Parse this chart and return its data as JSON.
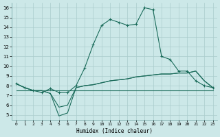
{
  "x": [
    0,
    1,
    2,
    3,
    4,
    5,
    6,
    7,
    8,
    9,
    10,
    11,
    12,
    13,
    14,
    15,
    16,
    17,
    18,
    19,
    20,
    21,
    22,
    23
  ],
  "line1_main": [
    8.2,
    7.8,
    7.5,
    7.3,
    7.7,
    7.3,
    7.3,
    8.0,
    9.8,
    12.2,
    14.2,
    14.8,
    14.5,
    14.2,
    14.3,
    16.0,
    15.8,
    11.0,
    10.7,
    9.5,
    9.5,
    8.5,
    8.0,
    7.8
  ],
  "line2_smooth": [
    8.2,
    7.8,
    7.5,
    7.5,
    7.2,
    4.9,
    5.2,
    7.8,
    8.0,
    8.1,
    8.3,
    8.5,
    8.6,
    8.7,
    8.9,
    9.0,
    9.1,
    9.2,
    9.2,
    9.3,
    9.3,
    9.5,
    8.5,
    7.8
  ],
  "line3_smooth": [
    8.2,
    7.8,
    7.5,
    7.5,
    7.2,
    5.8,
    6.0,
    7.8,
    8.0,
    8.1,
    8.3,
    8.5,
    8.6,
    8.7,
    8.9,
    9.0,
    9.1,
    9.2,
    9.2,
    9.3,
    9.3,
    9.5,
    8.5,
    7.8
  ],
  "line4_flat": [
    7.5,
    7.5,
    7.5,
    7.5,
    7.5,
    7.5,
    7.5,
    7.5,
    7.5,
    7.5,
    7.5,
    7.5,
    7.5,
    7.5,
    7.5,
    7.5,
    7.5,
    7.5,
    7.5,
    7.5,
    7.5,
    7.5,
    7.5,
    7.5
  ],
  "bg_color": "#cce8e8",
  "line_color": "#1a6b5a",
  "grid_color": "#aacccc",
  "xlabel": "Humidex (Indice chaleur)",
  "ylim": [
    4.5,
    16.5
  ],
  "xlim": [
    -0.5,
    23.5
  ],
  "yticks": [
    5,
    6,
    7,
    8,
    9,
    10,
    11,
    12,
    13,
    14,
    15,
    16
  ],
  "xticks": [
    0,
    1,
    2,
    3,
    4,
    5,
    6,
    7,
    8,
    9,
    10,
    11,
    12,
    13,
    14,
    15,
    16,
    17,
    18,
    19,
    20,
    21,
    22,
    23
  ]
}
